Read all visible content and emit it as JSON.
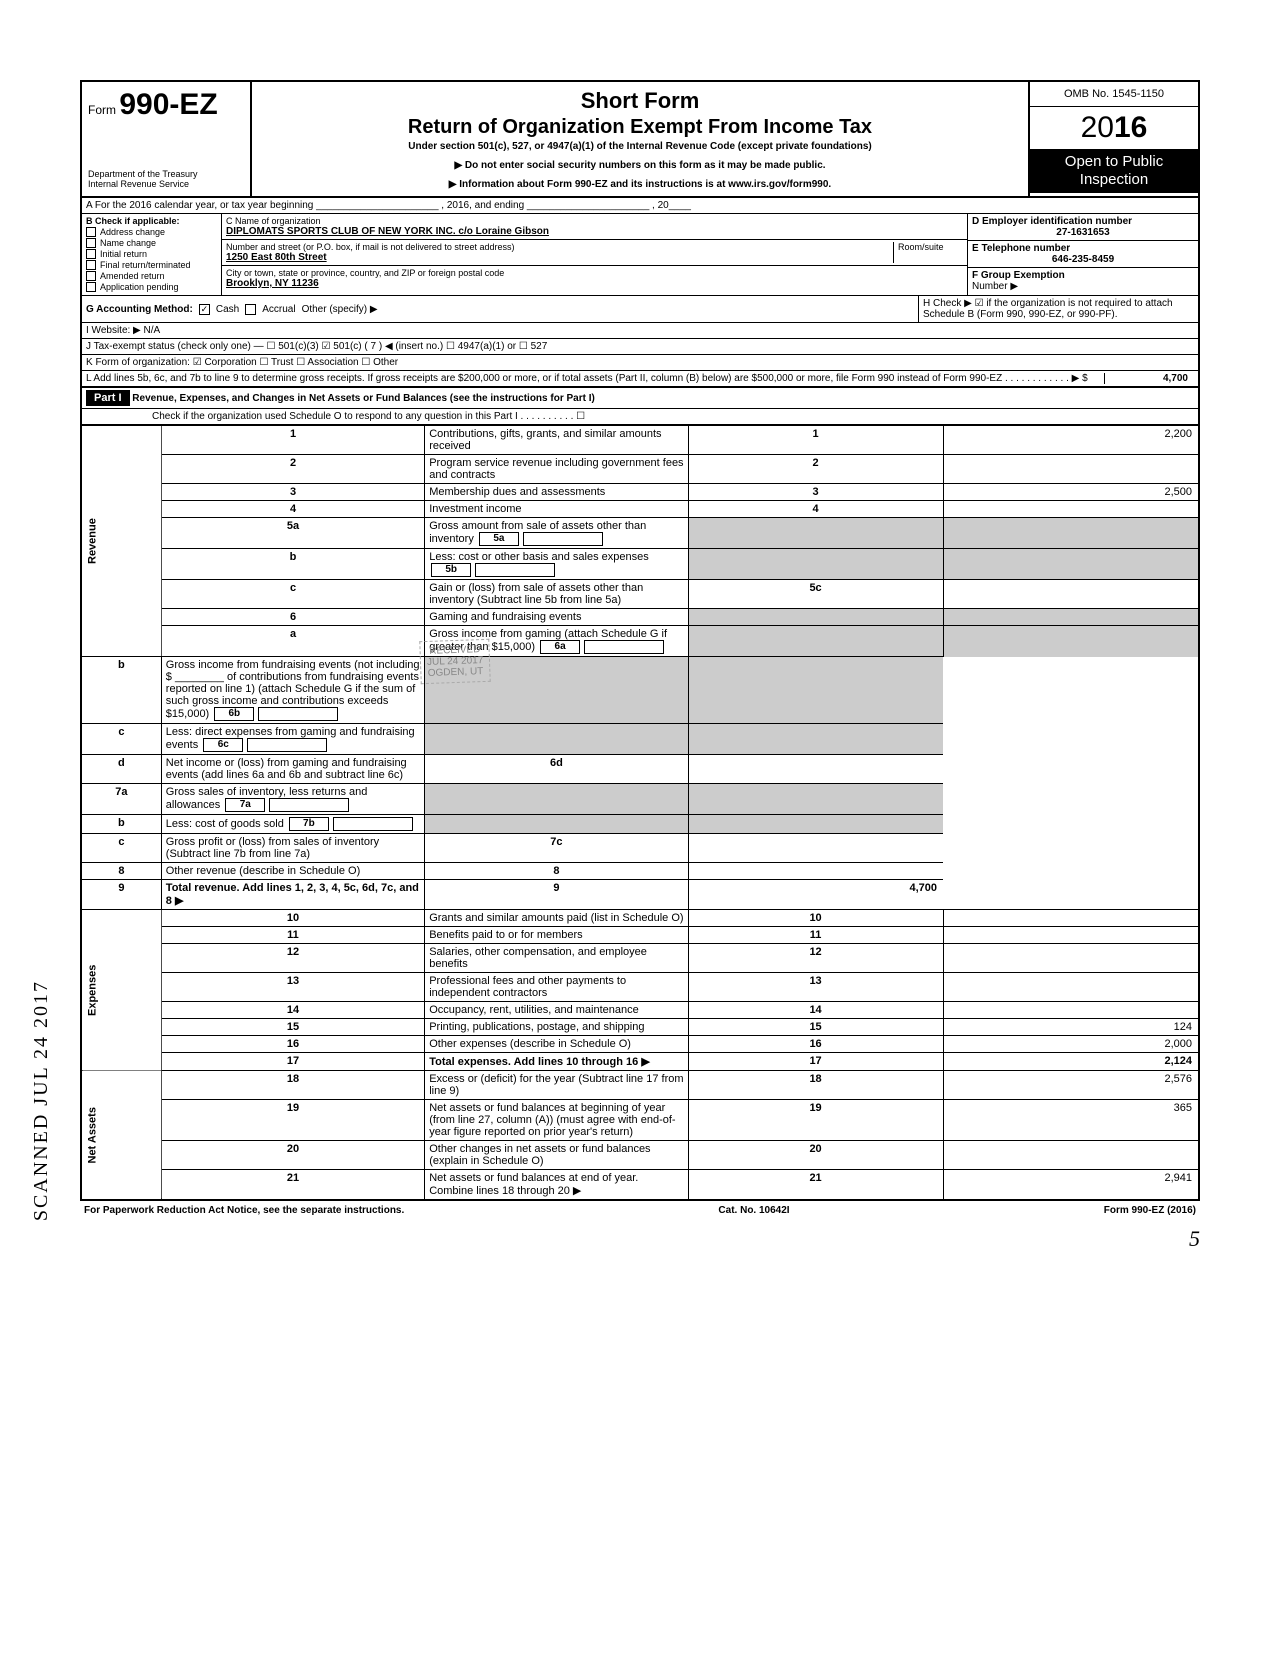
{
  "header": {
    "form_prefix": "Form",
    "form_number": "990-EZ",
    "dept1": "Department of the Treasury",
    "dept2": "Internal Revenue Service",
    "title_short": "Short Form",
    "title_main": "Return of Organization Exempt From Income Tax",
    "subtitle": "Under section 501(c), 527, or 4947(a)(1) of the Internal Revenue Code (except private foundations)",
    "bullet1": "▶ Do not enter social security numbers on this form as it may be made public.",
    "bullet2": "▶ Information about Form 990-EZ and its instructions is at www.irs.gov/form990.",
    "omb": "OMB No. 1545-1150",
    "year_prefix": "20",
    "year_bold": "16",
    "open1": "Open to Public",
    "open2": "Inspection"
  },
  "lineA": "A  For the 2016 calendar year, or tax year beginning ______________________ , 2016, and ending ______________________ , 20____",
  "sectionB": {
    "label": "B  Check if applicable:",
    "items": [
      "Address change",
      "Name change",
      "Initial return",
      "Final return/terminated",
      "Amended return",
      "Application pending"
    ]
  },
  "sectionC": {
    "name_lbl": "C  Name of organization",
    "name_val": "DIPLOMATS SPORTS CLUB OF NEW YORK INC.  c/o Loraine Gibson",
    "addr_lbl": "Number and street (or P.O. box, if mail is not delivered to street address)",
    "room_lbl": "Room/suite",
    "addr_val": "1250 East 80th Street",
    "city_lbl": "City or town, state or province, country, and ZIP or foreign postal code",
    "city_val": "Brooklyn, NY 11236"
  },
  "sectionDE": {
    "d_lbl": "D Employer identification number",
    "d_val": "27-1631653",
    "e_lbl": "E Telephone number",
    "e_val": "646-235-8459",
    "f_lbl": "F Group Exemption",
    "f_lbl2": "Number ▶"
  },
  "rowG": {
    "label": "G  Accounting Method:",
    "cash": "Cash",
    "accrual": "Accrual",
    "other": "Other (specify) ▶"
  },
  "rowH": "H  Check ▶ ☑ if the organization is not required to attach Schedule B (Form 990, 990-EZ, or 990-PF).",
  "rowI": "I   Website: ▶   N/A",
  "rowJ": "J  Tax-exempt status (check only one) —  ☐ 501(c)(3)   ☑ 501(c) (  7  ) ◀ (insert no.)  ☐ 4947(a)(1) or   ☐ 527",
  "rowK": "K  Form of organization:   ☑ Corporation    ☐ Trust    ☐ Association    ☐ Other",
  "rowL": "L  Add lines 5b, 6c, and 7b to line 9 to determine gross receipts. If gross receipts are $200,000 or more, or if total assets (Part II, column (B) below) are $500,000 or more, file Form 990 instead of Form 990-EZ  .  .  .  .  .  .  .  .  .  .  .  .  ▶  $",
  "rowL_amt": "4,700",
  "part1": {
    "label": "Part I",
    "title": "Revenue, Expenses, and Changes in Net Assets or Fund Balances (see the instructions for Part I)",
    "check": "Check if the organization used Schedule O to respond to any question in this Part I  .  .  .  .  .  .  .  .  .  .  ☐"
  },
  "sections": {
    "revenue": "Revenue",
    "expenses": "Expenses",
    "netassets": "Net Assets"
  },
  "lines": [
    {
      "no": "1",
      "txt": "Contributions, gifts, grants, and similar amounts received",
      "box": "1",
      "amt": "2,200"
    },
    {
      "no": "2",
      "txt": "Program service revenue including government fees and contracts",
      "box": "2",
      "amt": ""
    },
    {
      "no": "3",
      "txt": "Membership dues and assessments",
      "box": "3",
      "amt": "2,500"
    },
    {
      "no": "4",
      "txt": "Investment income",
      "box": "4",
      "amt": ""
    },
    {
      "no": "5a",
      "txt": "Gross amount from sale of assets other than inventory",
      "ibox": "5a"
    },
    {
      "no": "b",
      "txt": "Less: cost or other basis and sales expenses",
      "ibox": "5b"
    },
    {
      "no": "c",
      "txt": "Gain or (loss) from sale of assets other than inventory (Subtract line 5b from line 5a)",
      "box": "5c",
      "amt": ""
    },
    {
      "no": "6",
      "txt": "Gaming and fundraising events"
    },
    {
      "no": "a",
      "txt": "Gross income from gaming (attach Schedule G if greater than $15,000)",
      "ibox": "6a"
    },
    {
      "no": "b",
      "txt": "Gross income from fundraising events (not including $ ________ of contributions from fundraising events reported on line 1) (attach Schedule G if the sum of such gross income and contributions exceeds $15,000)",
      "ibox": "6b"
    },
    {
      "no": "c",
      "txt": "Less: direct expenses from gaming and fundraising events",
      "ibox": "6c"
    },
    {
      "no": "d",
      "txt": "Net income or (loss) from gaming and fundraising events (add lines 6a and 6b and subtract line 6c)",
      "box": "6d",
      "amt": ""
    },
    {
      "no": "7a",
      "txt": "Gross sales of inventory, less returns and allowances",
      "ibox": "7a"
    },
    {
      "no": "b",
      "txt": "Less: cost of goods sold",
      "ibox": "7b"
    },
    {
      "no": "c",
      "txt": "Gross profit or (loss) from sales of inventory (Subtract line 7b from line 7a)",
      "box": "7c",
      "amt": ""
    },
    {
      "no": "8",
      "txt": "Other revenue (describe in Schedule O)",
      "box": "8",
      "amt": ""
    },
    {
      "no": "9",
      "txt": "Total revenue. Add lines 1, 2, 3, 4, 5c, 6d, 7c, and 8",
      "box": "9",
      "amt": "4,700",
      "bold": true,
      "arrow": true
    },
    {
      "no": "10",
      "txt": "Grants and similar amounts paid (list in Schedule O)",
      "box": "10",
      "amt": ""
    },
    {
      "no": "11",
      "txt": "Benefits paid to or for members",
      "box": "11",
      "amt": ""
    },
    {
      "no": "12",
      "txt": "Salaries, other compensation, and employee benefits",
      "box": "12",
      "amt": ""
    },
    {
      "no": "13",
      "txt": "Professional fees and other payments to independent contractors",
      "box": "13",
      "amt": ""
    },
    {
      "no": "14",
      "txt": "Occupancy, rent, utilities, and maintenance",
      "box": "14",
      "amt": ""
    },
    {
      "no": "15",
      "txt": "Printing, publications, postage, and shipping",
      "box": "15",
      "amt": "124"
    },
    {
      "no": "16",
      "txt": "Other expenses (describe in Schedule O)",
      "box": "16",
      "amt": "2,000"
    },
    {
      "no": "17",
      "txt": "Total expenses. Add lines 10 through 16",
      "box": "17",
      "amt": "2,124",
      "bold": true,
      "arrow": true
    },
    {
      "no": "18",
      "txt": "Excess or (deficit) for the year (Subtract line 17 from line 9)",
      "box": "18",
      "amt": "2,576"
    },
    {
      "no": "19",
      "txt": "Net assets or fund balances at beginning of year (from line 27, column (A)) (must agree with end-of-year figure reported on prior year's return)",
      "box": "19",
      "amt": "365"
    },
    {
      "no": "20",
      "txt": "Other changes in net assets or fund balances (explain in Schedule O)",
      "box": "20",
      "amt": ""
    },
    {
      "no": "21",
      "txt": "Net assets or fund balances at end of year. Combine lines 18 through 20",
      "box": "21",
      "amt": "2,941",
      "arrow": true
    }
  ],
  "footer": {
    "left": "For Paperwork Reduction Act Notice, see the separate instructions.",
    "mid": "Cat. No. 10642I",
    "right": "Form 990-EZ (2016)"
  },
  "stamp": {
    "l1": "RECEIVED",
    "l2": "JUL 24 2017",
    "l3": "OGDEN, UT"
  },
  "scanned": "SCANNED  JUL 24 2017",
  "page": "5"
}
